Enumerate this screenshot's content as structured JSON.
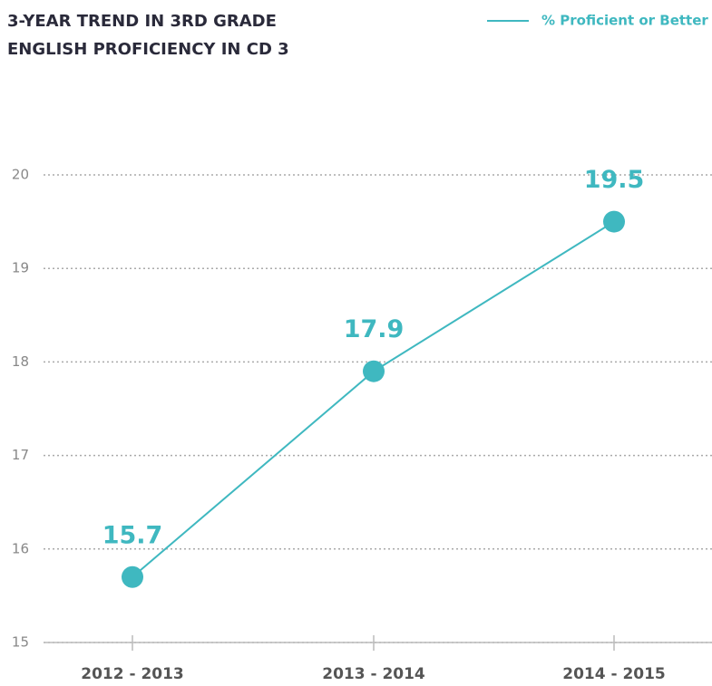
{
  "chart_data": {
    "type": "line",
    "title": "3-YEAR TREND IN 3RD GRADE ENGLISH PROFICIENCY IN CD 3",
    "categories": [
      "2012 - 2013",
      "2013 - 2014",
      "2014 - 2015"
    ],
    "series": [
      {
        "name": "% Proficient or Better",
        "color": "#3fb8c0",
        "values": [
          15.7,
          17.9,
          19.5
        ]
      }
    ],
    "ylim": [
      15,
      20
    ],
    "yticks": [
      15,
      16,
      17,
      18,
      19,
      20
    ],
    "grid": true,
    "legend": "top-right"
  }
}
